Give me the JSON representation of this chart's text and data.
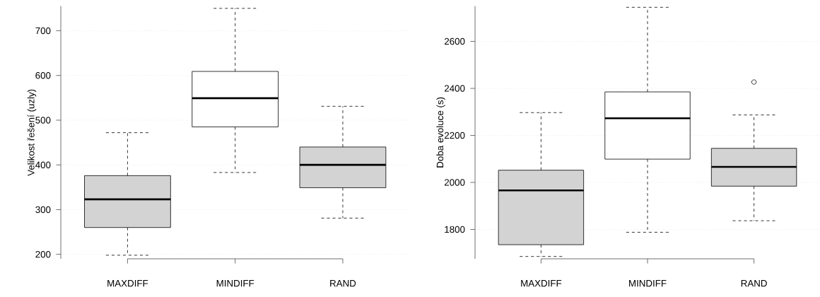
{
  "chart_data": [
    {
      "type": "box",
      "categories": [
        "MAXDIFF",
        "MINDIFF",
        "RAND"
      ],
      "ylabel": "Velikost řešení (uzly)",
      "ylim": [
        190,
        755
      ],
      "yticks": [
        200,
        300,
        400,
        500,
        600,
        700
      ],
      "grid": "y",
      "colors": [
        "#d3d3d3",
        "#ffffff",
        "#d3d3d3"
      ],
      "boxes": [
        {
          "low": 198,
          "q1": 260,
          "median": 323,
          "q3": 376,
          "high": 472
        },
        {
          "low": 383,
          "q1": 485,
          "median": 549,
          "q3": 609,
          "high": 750
        },
        {
          "low": 281,
          "q1": 349,
          "median": 400,
          "q3": 440,
          "high": 531
        }
      ]
    },
    {
      "type": "box",
      "categories": [
        "MAXDIFF",
        "MINDIFF",
        "RAND"
      ],
      "ylabel": "Doba evoluce (s)",
      "ylim": [
        1675,
        2750
      ],
      "yticks": [
        1800,
        2000,
        2200,
        2400,
        2600
      ],
      "grid": "y",
      "colors": [
        "#d3d3d3",
        "#ffffff",
        "#d3d3d3"
      ],
      "boxes": [
        {
          "low": 1685,
          "q1": 1735,
          "median": 1966,
          "q3": 2052,
          "high": 2297
        },
        {
          "low": 1788,
          "q1": 2099,
          "median": 2273,
          "q3": 2385,
          "high": 2745
        },
        {
          "low": 1837,
          "q1": 1984,
          "median": 2066,
          "q3": 2145,
          "high": 2287,
          "outliers": [
            2427
          ]
        }
      ]
    }
  ]
}
